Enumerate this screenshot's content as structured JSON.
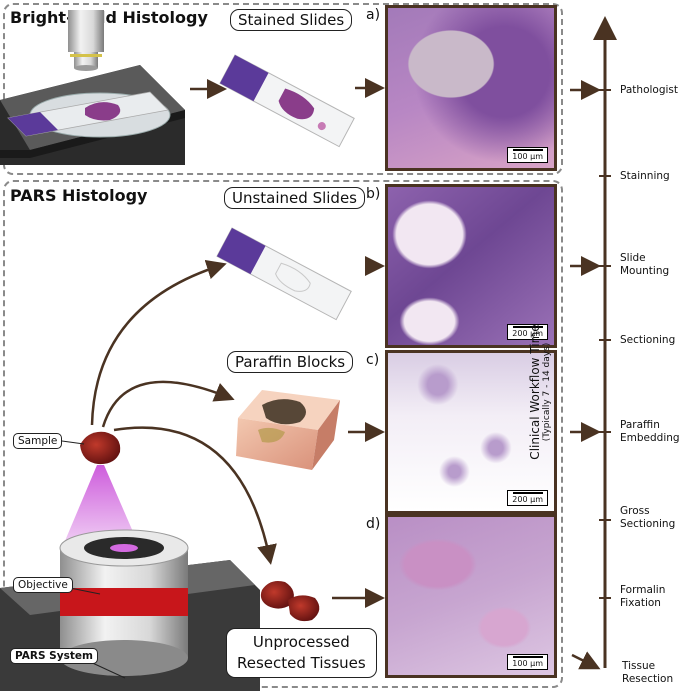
{
  "sections": {
    "brightfield_title": "Bright-Field Histology",
    "pars_title": "PARS Histology"
  },
  "labels": {
    "stained_slides": "Stained Slides",
    "unstained_slides": "Unstained Slides",
    "paraffin_blocks": "Paraffin Blocks",
    "unprocessed_line1": "Unprocessed",
    "unprocessed_line2": "Resected Tissues",
    "sample": "Sample",
    "objective": "Objective",
    "pars_system": "PARS System"
  },
  "panels": [
    {
      "letter": "a)",
      "scale": "100 µm"
    },
    {
      "letter": "b)",
      "scale": "200 µm"
    },
    {
      "letter": "c)",
      "scale": "200 µm"
    },
    {
      "letter": "d)",
      "scale": "100 µm"
    }
  ],
  "timeline": {
    "title": "Clinical Workflow Time",
    "subtitle": "(Typically 7 - 14 days)",
    "stages": [
      [
        "Pathologist"
      ],
      [
        "Stainning"
      ],
      [
        "Slide",
        "Mounting"
      ],
      [
        "Sectioning"
      ],
      [
        "Paraffin",
        "Embedding"
      ],
      [
        "Gross",
        "Sectioning"
      ],
      [
        "Formalin",
        "Fixation"
      ],
      [
        "Tissue",
        "Resection"
      ]
    ]
  },
  "colors": {
    "stain_pink": "#c98fc0",
    "stain_purple": "#6a3f8f",
    "laser": "#c84bd8",
    "tissue_red": "#8e1a1a",
    "arrow": "#4a3322"
  }
}
